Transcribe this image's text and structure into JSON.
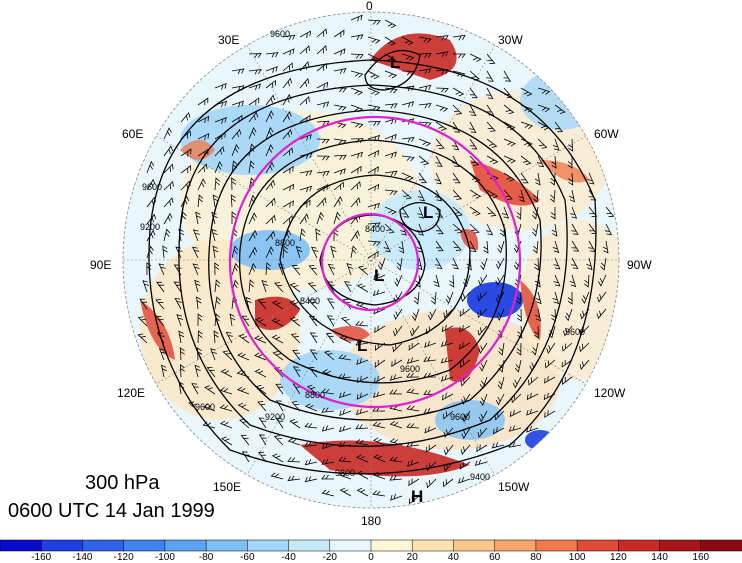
{
  "plot_info": {
    "level": "300 hPa",
    "valid_time": "0600 UTC 14 Jan 1999"
  },
  "longitude_labels": {
    "top": "0",
    "top_right": "30W",
    "right_upper": "60W",
    "right": "90W",
    "right_lower": "120W",
    "bottom_right": "150W",
    "bottom": "180",
    "bottom_left": "150E",
    "left_lower": "120E",
    "left": "90E",
    "left_upper": "60E",
    "top_left": "30E"
  },
  "pressure_systems": [
    {
      "type": "L",
      "label": "L"
    },
    {
      "type": "L",
      "label": "L"
    },
    {
      "type": "L",
      "label": "L"
    },
    {
      "type": "L",
      "label": "L"
    },
    {
      "type": "H",
      "label": "H"
    }
  ],
  "contour_labels": [
    "9600",
    "9600",
    "9200",
    "8800",
    "8400",
    "8400",
    "8800",
    "9200",
    "9600",
    "9600",
    "9600",
    "9600",
    "9600",
    "9400"
  ],
  "colorbar": {
    "ticks": [
      "-160",
      "-140",
      "-120",
      "-100",
      "-80",
      "-60",
      "-40",
      "-20",
      "0",
      "20",
      "40",
      "60",
      "80",
      "100",
      "120",
      "140",
      "160"
    ],
    "colors": [
      "#0a0acc",
      "#1f3fe0",
      "#2f62e8",
      "#3f84ee",
      "#5aa3f2",
      "#7ec0f6",
      "#a3d6f9",
      "#c7eafb",
      "#e6f7fd",
      "#fff7d6",
      "#fde3b0",
      "#fbc78b",
      "#f7a56a",
      "#f07a4e",
      "#e24b38",
      "#c82a25",
      "#a8161b",
      "#8a0a12"
    ]
  }
}
